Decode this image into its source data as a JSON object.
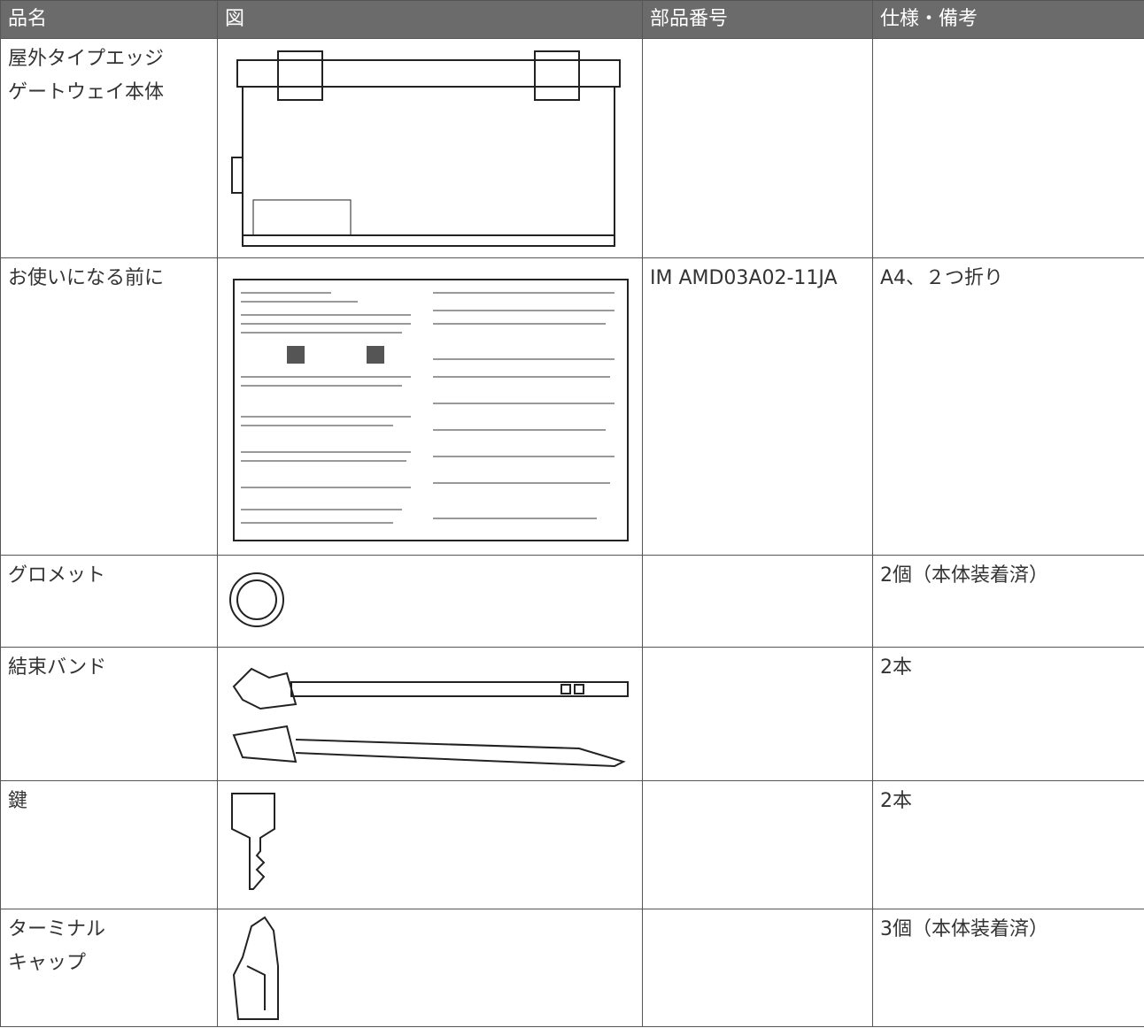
{
  "table": {
    "headers": [
      "品名",
      "図",
      "部品番号",
      "仕様・備考"
    ],
    "rows": [
      {
        "name": [
          "屋外タイプエッジ",
          "ゲートウェイ本体"
        ]
      },
      {
        "name": [
          "お使いになる前に"
        ],
        "part": "IM AMD03A02-11JA",
        "spec": "A4、２つ折り"
      },
      {
        "name": [
          "グロメット"
        ],
        "spec": "2個（本体装着済）"
      },
      {
        "name": [
          "結束バンド"
        ],
        "spec": "2本"
      },
      {
        "name": [
          "鍵"
        ],
        "spec": "2本"
      },
      {
        "name": [
          "ターミナル",
          "キャップ"
        ],
        "spec": "3個（本体装着済）"
      }
    ]
  }
}
